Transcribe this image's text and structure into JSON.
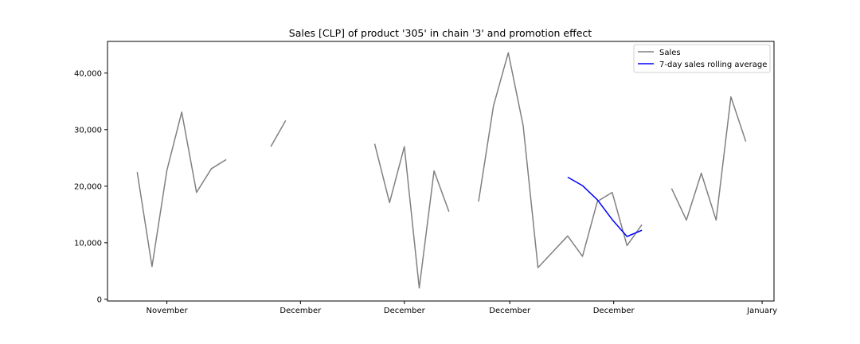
{
  "chart_data": {
    "type": "line",
    "title": "Sales [CLP] of product '305' in chain '3' and promotion effect",
    "xlabel": "",
    "ylabel": "",
    "xlim": [
      -2.0,
      42.9
    ],
    "ylim": [
      -300,
      45600
    ],
    "x_ticks": [
      {
        "x": 2.0,
        "label": "November"
      },
      {
        "x": 11.0,
        "label": "December"
      },
      {
        "x": 18.0,
        "label": "December"
      },
      {
        "x": 25.1,
        "label": "December"
      },
      {
        "x": 32.1,
        "label": "December"
      },
      {
        "x": 42.1,
        "label": "January"
      }
    ],
    "y_ticks": [
      {
        "y": 0,
        "label": "0"
      },
      {
        "y": 10000,
        "label": "10,000"
      },
      {
        "y": 20000,
        "label": "20,000"
      },
      {
        "y": 30000,
        "label": "30,000"
      },
      {
        "y": 40000,
        "label": "40,000"
      }
    ],
    "legend": {
      "position": "top-right"
    },
    "series": [
      {
        "name": "Sales",
        "color": "#808080",
        "points": [
          [
            0,
            22500
          ],
          [
            1,
            5800
          ],
          [
            2,
            22800
          ],
          [
            3,
            33100
          ],
          [
            4,
            18900
          ],
          [
            5,
            23100
          ],
          [
            6,
            24700
          ],
          [
            7,
            null
          ],
          [
            8,
            null
          ],
          [
            9,
            27000
          ],
          [
            10,
            31600
          ],
          [
            11,
            null
          ],
          [
            12,
            null
          ],
          [
            13,
            null
          ],
          [
            14,
            null
          ],
          [
            15,
            null
          ],
          [
            16,
            27500
          ],
          [
            17,
            17100
          ],
          [
            18,
            27000
          ],
          [
            19,
            2000
          ],
          [
            20,
            22700
          ],
          [
            21,
            15500
          ],
          [
            22,
            null
          ],
          [
            23,
            17300
          ],
          [
            24,
            34200
          ],
          [
            25,
            43600
          ],
          [
            26,
            30700
          ],
          [
            27,
            5600
          ],
          [
            28,
            8400
          ],
          [
            29,
            11200
          ],
          [
            30,
            7600
          ],
          [
            31,
            17300
          ],
          [
            32,
            18900
          ],
          [
            33,
            9500
          ],
          [
            34,
            13200
          ],
          [
            35,
            null
          ],
          [
            36,
            19600
          ],
          [
            37,
            14000
          ],
          [
            38,
            22300
          ],
          [
            39,
            14000
          ],
          [
            40,
            35800
          ],
          [
            41,
            27900
          ]
        ]
      },
      {
        "name": "7-day sales rolling average",
        "color": "#0000ff",
        "points": [
          [
            29,
            21600
          ],
          [
            30,
            20100
          ],
          [
            31,
            17600
          ],
          [
            32,
            14100
          ],
          [
            33,
            11100
          ],
          [
            34,
            12200
          ]
        ]
      }
    ]
  }
}
